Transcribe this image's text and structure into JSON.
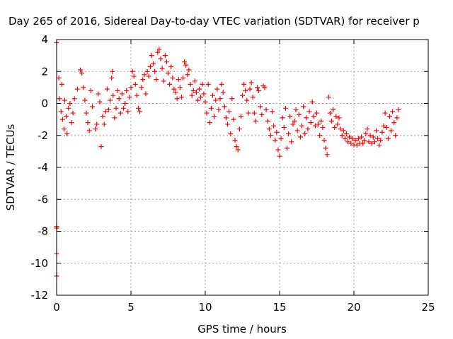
{
  "chart_data": {
    "type": "scatter",
    "title": "Day 265 of 2016, Sidereal Day-to-day VTEC variation (SDTVAR) for receiver p",
    "xlabel": "GPS time / hours",
    "ylabel": "SDTVAR / TECUs",
    "xlim": [
      0,
      25
    ],
    "ylim": [
      -12,
      4
    ],
    "xticks": [
      0,
      5,
      10,
      15,
      20,
      25
    ],
    "yticks": [
      -12,
      -10,
      -8,
      -6,
      -4,
      -2,
      0,
      2,
      4
    ],
    "grid": true,
    "marker": "+",
    "series": [
      {
        "name": "SDTVAR",
        "color": "#ff0000",
        "points": [
          [
            0.0,
            3.8
          ],
          [
            0.0,
            -7.7
          ],
          [
            0.0,
            -7.8
          ],
          [
            0.0,
            -9.4
          ],
          [
            0.0,
            -10.8
          ],
          [
            0.15,
            1.6
          ],
          [
            0.2,
            0.3
          ],
          [
            0.3,
            -0.5
          ],
          [
            0.35,
            1.2
          ],
          [
            0.4,
            -1.0
          ],
          [
            0.5,
            -1.6
          ],
          [
            0.55,
            0.2
          ],
          [
            0.65,
            -0.8
          ],
          [
            0.7,
            -1.9
          ],
          [
            0.8,
            -0.3
          ],
          [
            0.9,
            0.0
          ],
          [
            1.0,
            -1.2
          ],
          [
            1.1,
            -0.6
          ],
          [
            1.2,
            0.3
          ],
          [
            1.4,
            0.9
          ],
          [
            1.6,
            2.1
          ],
          [
            1.7,
            1.9
          ],
          [
            1.8,
            1.0
          ],
          [
            1.9,
            0.2
          ],
          [
            2.0,
            -0.6
          ],
          [
            2.1,
            -1.2
          ],
          [
            2.2,
            -1.7
          ],
          [
            2.3,
            0.8
          ],
          [
            2.4,
            -0.2
          ],
          [
            2.6,
            -1.6
          ],
          [
            2.7,
            -1.3
          ],
          [
            2.8,
            0.6
          ],
          [
            2.9,
            0.1
          ],
          [
            3.0,
            -2.7
          ],
          [
            3.1,
            -0.8
          ],
          [
            3.2,
            -1.3
          ],
          [
            3.3,
            -0.5
          ],
          [
            3.4,
            0.9
          ],
          [
            3.5,
            -0.4
          ],
          [
            3.6,
            0.2
          ],
          [
            3.7,
            1.6
          ],
          [
            3.75,
            2.0
          ],
          [
            3.8,
            0.5
          ],
          [
            3.9,
            -0.9
          ],
          [
            4.0,
            -0.3
          ],
          [
            4.1,
            0.8
          ],
          [
            4.2,
            0.3
          ],
          [
            4.3,
            -0.6
          ],
          [
            4.4,
            0.6
          ],
          [
            4.5,
            -0.3
          ],
          [
            4.6,
            0.0
          ],
          [
            4.7,
            0.8
          ],
          [
            4.8,
            -0.5
          ],
          [
            4.9,
            0.4
          ],
          [
            5.0,
            1.0
          ],
          [
            5.1,
            2.0
          ],
          [
            5.2,
            1.7
          ],
          [
            5.3,
            1.2
          ],
          [
            5.4,
            0.5
          ],
          [
            5.5,
            -0.3
          ],
          [
            5.6,
            -0.5
          ],
          [
            5.7,
            1.0
          ],
          [
            5.8,
            1.5
          ],
          [
            5.9,
            1.8
          ],
          [
            6.0,
            0.6
          ],
          [
            6.1,
            2.0
          ],
          [
            6.2,
            1.7
          ],
          [
            6.3,
            2.3
          ],
          [
            6.4,
            3.0
          ],
          [
            6.5,
            2.5
          ],
          [
            6.6,
            2.0
          ],
          [
            6.7,
            1.5
          ],
          [
            6.8,
            3.2
          ],
          [
            6.9,
            3.4
          ],
          [
            7.0,
            2.8
          ],
          [
            7.1,
            2.2
          ],
          [
            7.2,
            1.4
          ],
          [
            7.3,
            3.0
          ],
          [
            7.4,
            2.6
          ],
          [
            7.5,
            1.9
          ],
          [
            7.6,
            1.2
          ],
          [
            7.7,
            2.3
          ],
          [
            7.8,
            1.6
          ],
          [
            7.9,
            0.9
          ],
          [
            8.0,
            0.7
          ],
          [
            8.1,
            0.3
          ],
          [
            8.2,
            1.5
          ],
          [
            8.3,
            1.0
          ],
          [
            8.4,
            0.4
          ],
          [
            8.5,
            1.6
          ],
          [
            8.6,
            2.6
          ],
          [
            8.7,
            2.4
          ],
          [
            8.8,
            1.8
          ],
          [
            8.9,
            2.1
          ],
          [
            9.0,
            1.2
          ],
          [
            9.1,
            0.5
          ],
          [
            9.2,
            0.8
          ],
          [
            9.3,
            1.4
          ],
          [
            9.4,
            0.7
          ],
          [
            9.5,
            0.2
          ],
          [
            9.6,
            0.9
          ],
          [
            9.7,
            0.4
          ],
          [
            9.8,
            1.2
          ],
          [
            9.9,
            0.6
          ],
          [
            10.0,
            0.1
          ],
          [
            10.1,
            -0.6
          ],
          [
            10.2,
            1.2
          ],
          [
            10.3,
            -1.2
          ],
          [
            10.4,
            -0.3
          ],
          [
            10.5,
            0.5
          ],
          [
            10.6,
            -0.8
          ],
          [
            10.7,
            0.2
          ],
          [
            10.8,
            0.9
          ],
          [
            10.9,
            -0.4
          ],
          [
            11.0,
            0.3
          ],
          [
            11.1,
            1.2
          ],
          [
            11.2,
            0.7
          ],
          [
            11.3,
            -0.2
          ],
          [
            11.4,
            -0.9
          ],
          [
            11.5,
            -1.3
          ],
          [
            11.6,
            -0.5
          ],
          [
            11.7,
            -1.9
          ],
          [
            11.8,
            0.3
          ],
          [
            11.9,
            -1.0
          ],
          [
            12.0,
            -2.3
          ],
          [
            12.1,
            -2.7
          ],
          [
            12.2,
            -2.9
          ],
          [
            12.3,
            -1.6
          ],
          [
            12.4,
            -0.8
          ],
          [
            12.5,
            0.5
          ],
          [
            12.6,
            1.2
          ],
          [
            12.7,
            0.8
          ],
          [
            12.8,
            0.2
          ],
          [
            12.9,
            -0.6
          ],
          [
            13.0,
            0.9
          ],
          [
            13.1,
            1.3
          ],
          [
            13.2,
            0.4
          ],
          [
            13.3,
            -0.6
          ],
          [
            13.4,
            -1.1
          ],
          [
            13.5,
            1.0
          ],
          [
            13.6,
            0.8
          ],
          [
            13.7,
            -0.2
          ],
          [
            13.8,
            -0.7
          ],
          [
            13.9,
            1.1
          ],
          [
            14.0,
            1.0
          ],
          [
            14.1,
            -0.4
          ],
          [
            14.2,
            -1.1
          ],
          [
            14.3,
            -1.6
          ],
          [
            14.4,
            -2.0
          ],
          [
            14.5,
            -0.5
          ],
          [
            14.6,
            -1.4
          ],
          [
            14.7,
            -2.3
          ],
          [
            14.8,
            -1.8
          ],
          [
            14.9,
            -2.9
          ],
          [
            15.0,
            -3.3
          ],
          [
            15.1,
            -2.2
          ],
          [
            15.2,
            -0.9
          ],
          [
            15.3,
            -1.5
          ],
          [
            15.4,
            -0.3
          ],
          [
            15.5,
            -2.8
          ],
          [
            15.6,
            -1.9
          ],
          [
            15.7,
            -0.8
          ],
          [
            15.8,
            -2.4
          ],
          [
            15.9,
            -1.3
          ],
          [
            16.0,
            -1.1
          ],
          [
            16.1,
            -0.4
          ],
          [
            16.2,
            -1.7
          ],
          [
            16.3,
            -0.7
          ],
          [
            16.4,
            -2.1
          ],
          [
            16.5,
            -1.4
          ],
          [
            16.6,
            -0.2
          ],
          [
            16.7,
            -1.9
          ],
          [
            16.8,
            -0.9
          ],
          [
            16.9,
            -1.6
          ],
          [
            17.0,
            -0.5
          ],
          [
            17.1,
            -1.2
          ],
          [
            17.2,
            0.1
          ],
          [
            17.3,
            -0.8
          ],
          [
            17.4,
            -1.4
          ],
          [
            17.5,
            -0.6
          ],
          [
            17.6,
            -1.3
          ],
          [
            17.7,
            -2.0
          ],
          [
            17.8,
            -1.1
          ],
          [
            17.9,
            -1.5
          ],
          [
            18.0,
            -2.3
          ],
          [
            18.1,
            -2.8
          ],
          [
            18.2,
            -3.2
          ],
          [
            18.3,
            0.4
          ],
          [
            18.4,
            -0.6
          ],
          [
            18.5,
            -1.1
          ],
          [
            18.6,
            -0.4
          ],
          [
            18.7,
            -1.5
          ],
          [
            18.8,
            -0.8
          ],
          [
            18.9,
            -1.3
          ],
          [
            19.0,
            -0.9
          ],
          [
            19.1,
            -1.6
          ],
          [
            19.2,
            -2.0
          ],
          [
            19.3,
            -1.7
          ],
          [
            19.4,
            -2.2
          ],
          [
            19.5,
            -1.9
          ],
          [
            19.6,
            -2.4
          ],
          [
            19.7,
            -2.1
          ],
          [
            19.8,
            -2.5
          ],
          [
            19.9,
            -2.2
          ],
          [
            20.0,
            -2.6
          ],
          [
            20.1,
            -2.3
          ],
          [
            20.2,
            -2.6
          ],
          [
            20.3,
            -2.2
          ],
          [
            20.4,
            -2.5
          ],
          [
            20.5,
            -2.1
          ],
          [
            20.6,
            -2.5
          ],
          [
            20.7,
            -2.3
          ],
          [
            20.8,
            -1.9
          ],
          [
            20.9,
            -1.6
          ],
          [
            21.0,
            -2.4
          ],
          [
            21.1,
            -2.0
          ],
          [
            21.2,
            -2.5
          ],
          [
            21.3,
            -2.1
          ],
          [
            21.4,
            -2.4
          ],
          [
            21.5,
            -1.7
          ],
          [
            21.6,
            -2.2
          ],
          [
            21.7,
            -2.6
          ],
          [
            21.8,
            -2.3
          ],
          [
            21.9,
            -1.8
          ],
          [
            22.0,
            -1.4
          ],
          [
            22.1,
            -0.6
          ],
          [
            22.2,
            -1.5
          ],
          [
            22.3,
            -2.2
          ],
          [
            22.4,
            -0.8
          ],
          [
            22.5,
            -1.7
          ],
          [
            22.6,
            -0.5
          ],
          [
            22.7,
            -1.2
          ],
          [
            22.8,
            -2.0
          ],
          [
            22.9,
            -0.9
          ],
          [
            23.0,
            -0.4
          ]
        ]
      }
    ]
  }
}
